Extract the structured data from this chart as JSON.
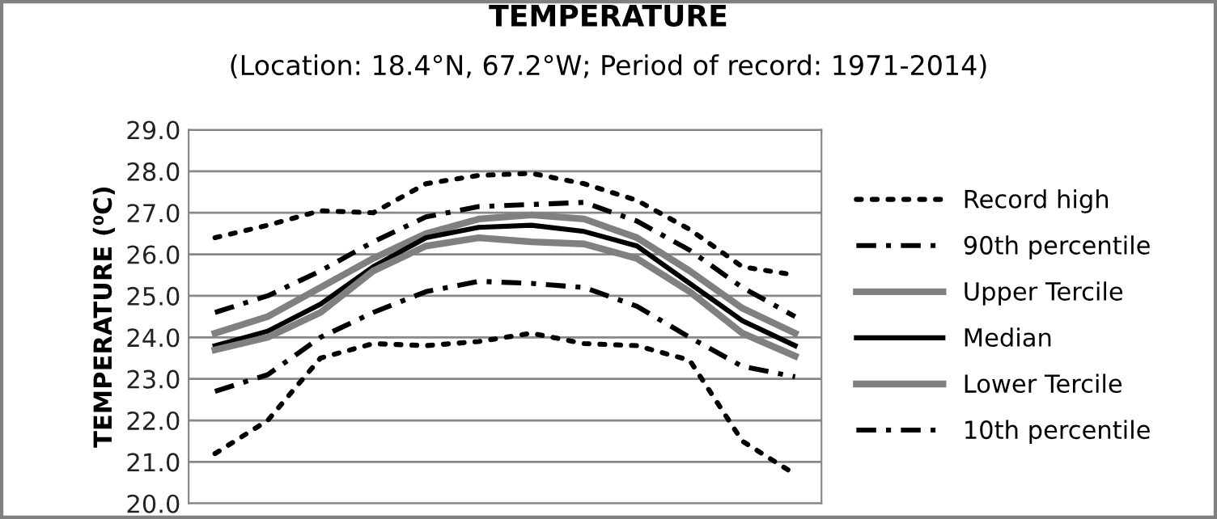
{
  "chart_data": {
    "type": "line",
    "title": "TEMPERATURE",
    "subtitle": "(Location: 18.4°N, 67.2°W; Period of record: 1971-2014)",
    "ylabel": "TEMPERATURE (⁰C)",
    "categories": [
      null,
      null,
      null,
      null,
      null,
      null,
      null,
      null,
      null,
      null,
      null,
      null
    ],
    "ylim": [
      20,
      29
    ],
    "yticks": [
      {
        "value": 20,
        "label": "20.0"
      },
      {
        "value": 21,
        "label": "21.0"
      },
      {
        "value": 22,
        "label": "22.0"
      },
      {
        "value": 23,
        "label": "23.0"
      },
      {
        "value": 24,
        "label": "24.0"
      },
      {
        "value": 25,
        "label": "25.0"
      },
      {
        "value": 26,
        "label": "26.0"
      },
      {
        "value": 27,
        "label": "27.0"
      },
      {
        "value": 28,
        "label": "28.0"
      },
      {
        "value": 29,
        "label": "29.0"
      }
    ],
    "grid": "y",
    "legend": "right",
    "marker": "none",
    "series": [
      {
        "name": "Record high",
        "color": "#000000",
        "line_style": "dotted",
        "values": [
          26.4,
          26.7,
          27.05,
          27.0,
          27.7,
          27.9,
          27.95,
          27.7,
          27.3,
          26.6,
          25.7,
          25.5
        ]
      },
      {
        "name": "90th percentile",
        "color": "#000000",
        "line_style": "dashdot",
        "values": [
          24.6,
          25.0,
          25.6,
          26.3,
          26.9,
          27.15,
          27.2,
          27.25,
          26.8,
          26.1,
          25.2,
          24.5
        ]
      },
      {
        "name": "Upper Tercile",
        "color": "#808080",
        "line_style": "solid",
        "values": [
          24.1,
          24.5,
          25.2,
          25.9,
          26.5,
          26.85,
          26.95,
          26.85,
          26.4,
          25.6,
          24.7,
          24.1
        ]
      },
      {
        "name": "Median",
        "color": "#000000",
        "line_style": "solid",
        "values": [
          23.8,
          24.15,
          24.8,
          25.7,
          26.4,
          26.65,
          26.7,
          26.55,
          26.2,
          25.3,
          24.4,
          23.8
        ]
      },
      {
        "name": "Lower Tercile",
        "color": "#808080",
        "line_style": "solid",
        "values": [
          23.7,
          24.0,
          24.6,
          25.6,
          26.2,
          26.4,
          26.3,
          26.25,
          25.9,
          25.1,
          24.1,
          23.55
        ]
      },
      {
        "name": "10th percentile",
        "color": "#000000",
        "line_style": "dashdot",
        "values": [
          22.7,
          23.1,
          24.0,
          24.6,
          25.1,
          25.35,
          25.3,
          25.2,
          24.75,
          24.0,
          23.3,
          23.05
        ]
      },
      {
        "color": "#000000",
        "line_style": "dotted",
        "values": [
          21.2,
          22.0,
          23.5,
          23.85,
          23.8,
          23.9,
          24.1,
          23.85,
          23.8,
          23.45,
          21.5,
          20.7
        ]
      }
    ]
  }
}
